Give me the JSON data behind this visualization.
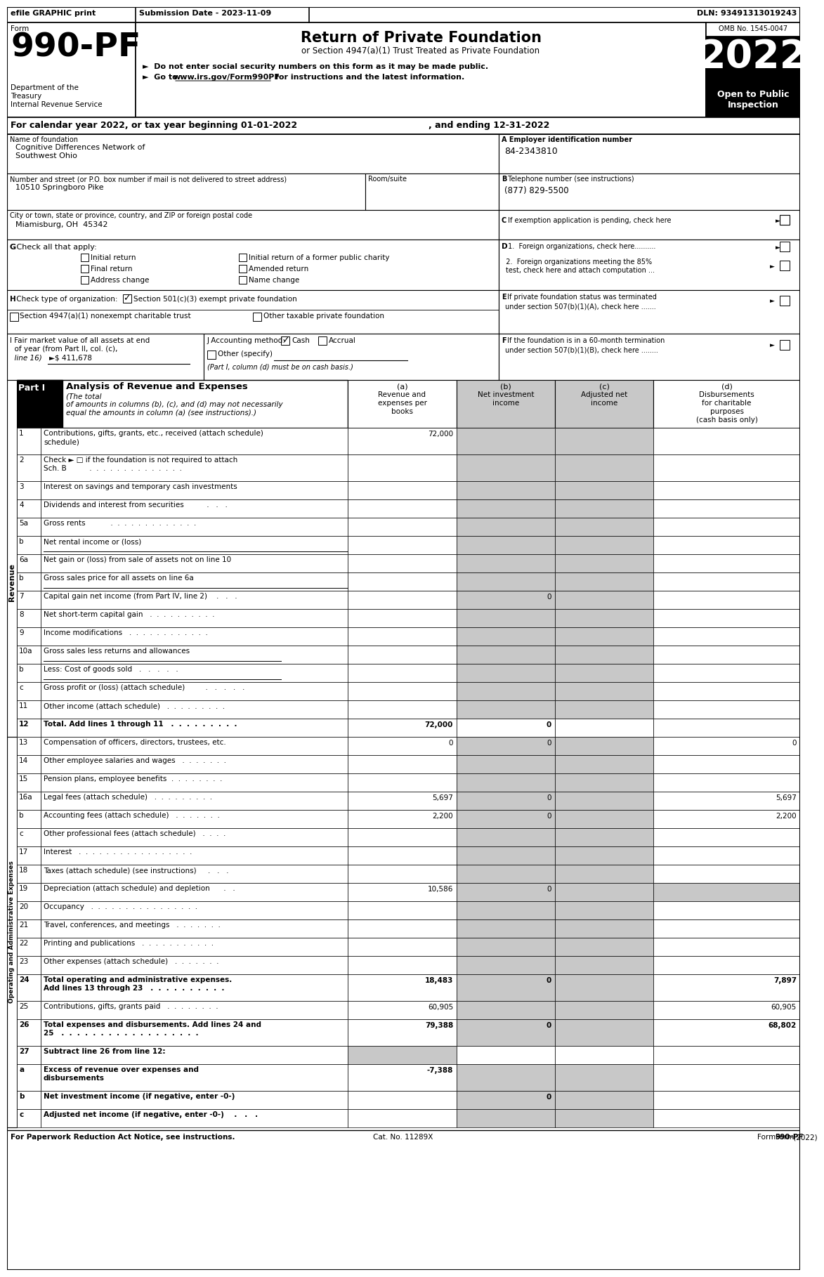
{
  "efile": "efile GRAPHIC print",
  "submission": "Submission Date - 2023-11-09",
  "dln": "DLN: 93491313019243",
  "form_label": "Form",
  "form_num": "990-PF",
  "dept1": "Department of the",
  "dept2": "Treasury",
  "dept3": "Internal Revenue Service",
  "title_main": "Return of Private Foundation",
  "title_sub": "or Section 4947(a)(1) Trust Treated as Private Foundation",
  "bullet1": "►  Do not enter social security numbers on this form as it may be made public.",
  "bullet2": "►  Go to www.irs.gov/Form990PF for instructions and the latest information.",
  "url_text": "www.irs.gov/Form990PF",
  "omb": "OMB No. 1545-0047",
  "year": "2022",
  "open_to": "Open to Public\nInspection",
  "calendar_line1": "For calendar year 2022, or tax year beginning 01-01-2022",
  "calendar_line2": ", and ending 12-31-2022",
  "name_label": "Name of foundation",
  "name_val1": "Cognitive Differences Network of",
  "name_val2": "Southwest Ohio",
  "ein_label": "A Employer identification number",
  "ein_val": "84-2343810",
  "addr_label": "Number and street (or P.O. box number if mail is not delivered to street address)",
  "addr_val": "10510 Springboro Pike",
  "room_label": "Room/suite",
  "phone_label_b": "B",
  "phone_label": " Telephone number (see instructions)",
  "phone_val": "(877) 829-5500",
  "city_label": "City or town, state or province, country, and ZIP or foreign postal code",
  "city_val": "Miamisburg, OH  45342",
  "c_label": "C",
  "c_text": " If exemption application is pending, check here",
  "g_bold": "G",
  "g_text": " Check all that apply:",
  "g_items_row1": [
    "Initial return",
    "Initial return of a former public charity"
  ],
  "g_items_row2": [
    "Final return",
    "Amended return"
  ],
  "g_items_row3": [
    "Address change",
    "Name change"
  ],
  "d_bold": "D",
  "d1_text": " 1.  Foreign organizations, check here..........",
  "d2_text": "2.  Foreign organizations meeting the 85%",
  "d2_text2": "test, check here and attach computation ...",
  "e_bold": "E",
  "e_text1": " If private foundation status was terminated",
  "e_text2": "under section 507(b)(1)(A), check here .......",
  "h_bold": "H",
  "h_text": " Check type of organization:",
  "h_opt1": "Section 501(c)(3) exempt private foundation",
  "h_opt2": "Section 4947(a)(1) nonexempt charitable trust",
  "h_opt3": "Other taxable private foundation",
  "i_text1": "I Fair market value of all assets at end",
  "i_text2": "of year (from Part II, col. (c),",
  "i_text3": "line 16)",
  "i_arrow": "►",
  "i_val": "$ 411,678",
  "j_text": "J Accounting method:",
  "j_cash": "Cash",
  "j_accrual": "Accrual",
  "j_other": "Other (specify)",
  "j_note": "(Part I, column (d) must be on cash basis.)",
  "f_bold": "F",
  "f_text1": " If the foundation is in a 60-month termination",
  "f_text2": "under section 507(b)(1)(B), check here ........",
  "part1_label": "Part I",
  "part1_title": "Analysis of Revenue and Expenses",
  "part1_italic": "(The total",
  "part1_italic2": "of amounts in columns (b), (c), and (d) may not necessarily",
  "part1_italic3": "equal the amounts in column (a) (see instructions).)",
  "col_a_label": "(a)",
  "col_a_text": "Revenue and\nexpenses per\nbooks",
  "col_b_label": "(b)",
  "col_b_text": "Net investment\nincome",
  "col_c_label": "(c)",
  "col_c_text": "Adjusted net\nincome",
  "col_d_label": "(d)",
  "col_d_text": "Disbursements\nfor charitable\npurposes\n(cash basis only)",
  "rows": [
    {
      "num": "1",
      "label": "Contributions, gifts, grants, etc., received (attach schedule)",
      "label2": "schedule)",
      "twoline": true,
      "a": "72,000",
      "b": "",
      "c": "",
      "d": "",
      "b_gray": true,
      "c_gray": true
    },
    {
      "num": "2",
      "label": "Check ► □ if the foundation is not required to attach",
      "label2": "Sch. B          .  .  .  .  .  .  .  .  .  .  .  .  .  .",
      "twoline": true,
      "a": "",
      "b": "",
      "c": "",
      "d": "",
      "b_gray": true,
      "c_gray": true
    },
    {
      "num": "3",
      "label": "Interest on savings and temporary cash investments",
      "a": "",
      "b": "",
      "c": "",
      "d": ""
    },
    {
      "num": "4",
      "label": "Dividends and interest from securities          .   .   .",
      "a": "",
      "b": "",
      "c": "",
      "d": ""
    },
    {
      "num": "5a",
      "label": "Gross rents           .  .  .  .  .  .  .  .  .  .  .  .  .",
      "a": "",
      "b": "",
      "c": "",
      "d": ""
    },
    {
      "num": "b",
      "label": "Net rental income or (loss)",
      "underline": true,
      "a": "",
      "b": "",
      "c": "",
      "d": ""
    },
    {
      "num": "6a",
      "label": "Net gain or (loss) from sale of assets not on line 10",
      "a": "",
      "b": "",
      "c": "",
      "d": ""
    },
    {
      "num": "b",
      "label": "Gross sales price for all assets on line 6a",
      "underline": true,
      "a": "",
      "b": "",
      "c": "",
      "d": ""
    },
    {
      "num": "7",
      "label": "Capital gain net income (from Part IV, line 2)    .   .   .",
      "a": "",
      "b": "0",
      "c": "",
      "d": ""
    },
    {
      "num": "8",
      "label": "Net short-term capital gain   .  .  .  .  .  .  .  .  .  .",
      "a": "",
      "b": "",
      "c": "",
      "d": ""
    },
    {
      "num": "9",
      "label": "Income modifications   .  .  .  .  .  .  .  .  .  .  .  .",
      "a": "",
      "b": "",
      "c": "",
      "d": ""
    },
    {
      "num": "10a",
      "label": "Gross sales less returns and allowances",
      "partial_underline": true,
      "a": "",
      "b": "",
      "c": "",
      "d": ""
    },
    {
      "num": "b",
      "label": "Less: Cost of goods sold   .   .   .   .   .",
      "partial_underline": true,
      "a": "",
      "b": "",
      "c": "",
      "d": ""
    },
    {
      "num": "c",
      "label": "Gross profit or (loss) (attach schedule)         .   .   .   .   .",
      "a": "",
      "b": "",
      "c": "",
      "d": ""
    },
    {
      "num": "11",
      "label": "Other income (attach schedule)   .  .  .  .  .  .  .  .  .",
      "a": "",
      "b": "",
      "c": "",
      "d": ""
    },
    {
      "num": "12",
      "label": "Total. Add lines 1 through 11   .  .  .  .  .  .  .  .  .",
      "bold": true,
      "a": "72,000",
      "b": "0",
      "c": "",
      "d": "",
      "b_gray": false,
      "c_gray": false
    },
    {
      "num": "13",
      "label": "Compensation of officers, directors, trustees, etc.",
      "a": "0",
      "b": "0",
      "c": "",
      "d": "0"
    },
    {
      "num": "14",
      "label": "Other employee salaries and wages   .  .  .  .  .  .  .",
      "a": "",
      "b": "",
      "c": "",
      "d": ""
    },
    {
      "num": "15",
      "label": "Pension plans, employee benefits  .  .  .  .  .  .  .  .",
      "a": "",
      "b": "",
      "c": "",
      "d": ""
    },
    {
      "num": "16a",
      "label": "Legal fees (attach schedule)   .  .  .  .  .  .  .  .  .",
      "a": "5,697",
      "b": "0",
      "c": "",
      "d": "5,697"
    },
    {
      "num": "b",
      "label": "Accounting fees (attach schedule)   .  .  .  .  .  .  .",
      "a": "2,200",
      "b": "0",
      "c": "",
      "d": "2,200"
    },
    {
      "num": "c",
      "label": "Other professional fees (attach schedule)   .  .  .  .",
      "a": "",
      "b": "",
      "c": "",
      "d": ""
    },
    {
      "num": "17",
      "label": "Interest   .  .  .  .  .  .  .  .  .  .  .  .  .  .  .  .  .",
      "a": "",
      "b": "",
      "c": "",
      "d": ""
    },
    {
      "num": "18",
      "label": "Taxes (attach schedule) (see instructions)     .   .   .",
      "a": "",
      "b": "",
      "c": "",
      "d": ""
    },
    {
      "num": "19",
      "label": "Depreciation (attach schedule) and depletion      .   .",
      "a": "10,586",
      "b": "0",
      "c": "",
      "d": "",
      "d_gray": true
    },
    {
      "num": "20",
      "label": "Occupancy   .  .  .  .  .  .  .  .  .  .  .  .  .  .  .  .",
      "a": "",
      "b": "",
      "c": "",
      "d": ""
    },
    {
      "num": "21",
      "label": "Travel, conferences, and meetings   .  .  .  .  .  .  .",
      "a": "",
      "b": "",
      "c": "",
      "d": ""
    },
    {
      "num": "22",
      "label": "Printing and publications   .  .  .  .  .  .  .  .  .  .  .",
      "a": "",
      "b": "",
      "c": "",
      "d": ""
    },
    {
      "num": "23",
      "label": "Other expenses (attach schedule)   .  .  .  .  .  .  .",
      "a": "",
      "b": "",
      "c": "",
      "d": ""
    },
    {
      "num": "24",
      "label": "Total operating and administrative expenses.",
      "label2": "Add lines 13 through 23   .  .  .  .  .  .  .  .  .  .",
      "twoline": true,
      "bold": true,
      "a": "18,483",
      "b": "0",
      "c": "",
      "d": "7,897"
    },
    {
      "num": "25",
      "label": "Contributions, gifts, grants paid   .  .  .  .  .  .  .  .",
      "a": "60,905",
      "b": "",
      "c": "",
      "d": "60,905",
      "b_gray": true,
      "c_gray": true
    },
    {
      "num": "26",
      "label": "Total expenses and disbursements. Add lines 24 and",
      "label2": "25   .  .  .  .  .  .  .  .  .  .  .  .  .  .  .  .  .  .",
      "twoline": true,
      "bold": true,
      "a": "79,388",
      "b": "0",
      "c": "",
      "d": "68,802"
    },
    {
      "num": "27",
      "label": "Subtract line 26 from line 12:",
      "bold": true,
      "a": "",
      "b": "",
      "c": "",
      "d": "",
      "a_gray": true,
      "b_gray": false,
      "c_gray": false,
      "d_gray": false,
      "all_gray_except_a": false,
      "row27": true
    },
    {
      "num": "a",
      "label": "Excess of revenue over expenses and",
      "label2": "disbursements",
      "twoline": true,
      "bold": true,
      "a": "-7,388",
      "b": "",
      "c": "",
      "d": ""
    },
    {
      "num": "b",
      "label": "Net investment income (if negative, enter -0-)",
      "bold": true,
      "a": "",
      "b": "0",
      "c": "",
      "d": ""
    },
    {
      "num": "c",
      "label": "Adjusted net income (if negative, enter -0-)    .   .   .",
      "bold": true,
      "a": "",
      "b": "",
      "c": "",
      "d": ""
    }
  ],
  "revenue_label": "Revenue",
  "expenses_label": "Operating and Administrative Expenses",
  "footer_left": "For Paperwork Reduction Act Notice, see instructions.",
  "footer_cat": "Cat. No. 11289X",
  "footer_right": "Form 990-PF (2022)",
  "gray": "#c8c8c8",
  "black": "#000000",
  "white": "#ffffff"
}
